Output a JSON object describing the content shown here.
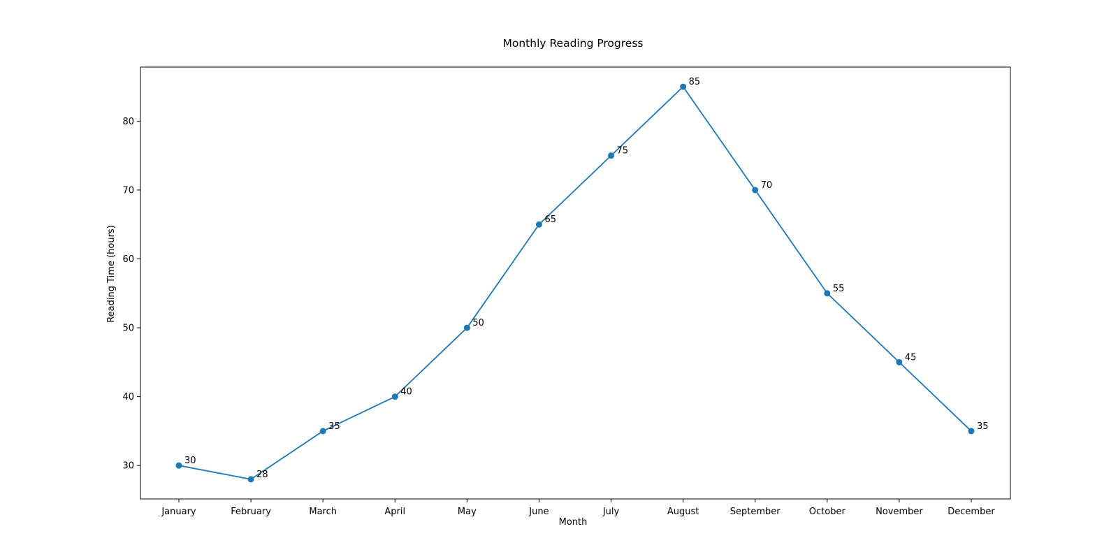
{
  "chart_data": {
    "type": "line",
    "title": "Monthly Reading Progress",
    "xlabel": "Month",
    "ylabel": "Reading Time (hours)",
    "categories": [
      "January",
      "February",
      "March",
      "April",
      "May",
      "June",
      "July",
      "August",
      "September",
      "October",
      "November",
      "December"
    ],
    "series": [
      {
        "values": [
          30,
          28,
          35,
          40,
          50,
          65,
          75,
          85,
          70,
          55,
          45,
          35
        ]
      }
    ],
    "yticks": [
      30,
      40,
      50,
      60,
      70,
      80
    ],
    "ylim": [
      25.15,
      87.85
    ],
    "grid": false,
    "legend": "none",
    "markers": true,
    "data_labels": true,
    "color": "#1f77b4"
  }
}
